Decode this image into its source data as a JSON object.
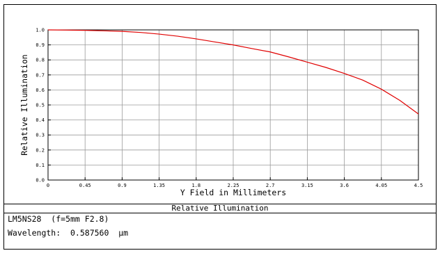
{
  "chart_data": {
    "type": "line",
    "title": "Relative Illumination",
    "xlabel": "Y Field in Millimeters",
    "ylabel": "Relative Illumination",
    "xlim": [
      0,
      4.5
    ],
    "ylim": [
      0,
      1.0
    ],
    "x_ticks": [
      "0",
      "0.45",
      "0.9",
      "1.35",
      "1.8",
      "2.25",
      "2.7",
      "3.15",
      "3.6",
      "4.05",
      "4.5"
    ],
    "y_ticks": [
      "0.0",
      "0.1",
      "0.2",
      "0.3",
      "0.4",
      "0.5",
      "0.6",
      "0.7",
      "0.8",
      "0.9",
      "1.0"
    ],
    "grid": true,
    "series_color": "#e00000",
    "series": [
      {
        "x": [
          0,
          0.225,
          0.45,
          0.675,
          0.9,
          1.125,
          1.35,
          1.575,
          1.8,
          2.025,
          2.25,
          2.475,
          2.7,
          2.925,
          3.15,
          3.375,
          3.6,
          3.825,
          4.05,
          4.275,
          4.5
        ],
        "y": [
          1.0,
          0.999,
          0.997,
          0.994,
          0.99,
          0.983,
          0.972,
          0.958,
          0.94,
          0.92,
          0.9,
          0.876,
          0.853,
          0.82,
          0.785,
          0.75,
          0.71,
          0.665,
          0.605,
          0.53,
          0.44
        ]
      }
    ]
  },
  "info": {
    "line1": "LM5NS28  (f=5mm F2.8)",
    "line2": "Wavelength:  0.587560  µm"
  }
}
